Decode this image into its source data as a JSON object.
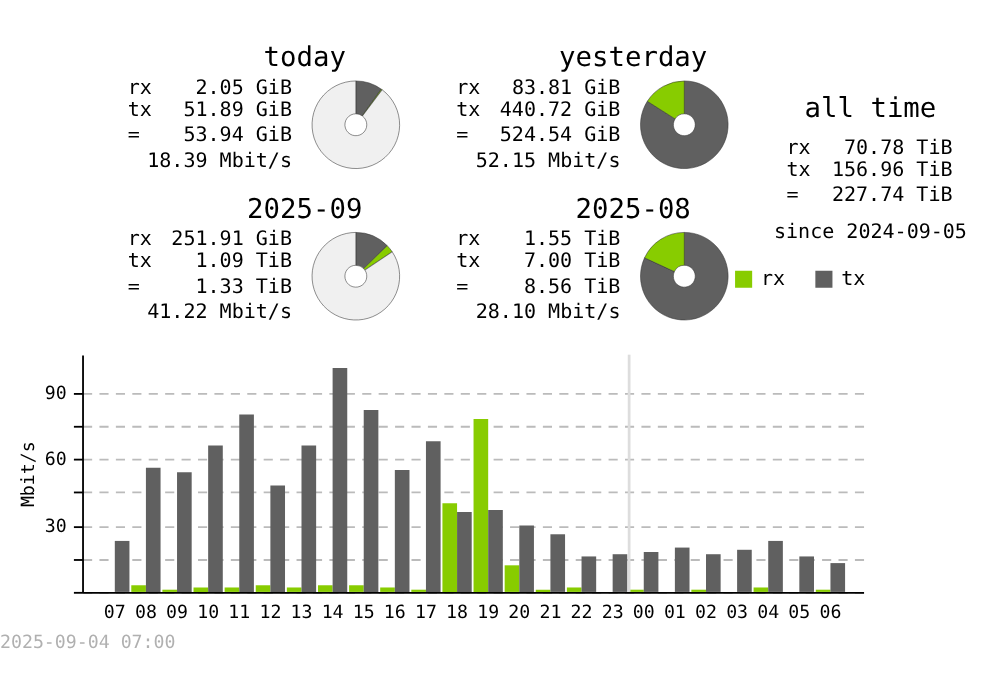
{
  "chart_data": [
    {
      "type": "donut",
      "title": "today",
      "categories": [
        null,
        null,
        null
      ],
      "values": [
        9.89,
        0.39,
        89.72
      ],
      "colors": [
        "#606060",
        "#88cc00",
        "#f0f0f0"
      ],
      "annotations": [
        "rx",
        "2.05 GiB",
        "tx",
        "51.89 GiB",
        "=",
        "53.94 GiB",
        "18.39 Mbit/s"
      ]
    },
    {
      "type": "donut",
      "title": "yesterday",
      "categories": [
        null,
        null
      ],
      "values": [
        84.0,
        16.0
      ],
      "colors": [
        "#606060",
        "#88cc00"
      ],
      "annotations": [
        "rx",
        "83.81 GiB",
        "tx",
        "440.72 GiB",
        "=",
        "524.54 GiB",
        "52.15 Mbit/s"
      ]
    },
    {
      "type": "other",
      "title": "all time",
      "annotations": [
        "rx",
        "70.78 TiB",
        "tx",
        "156.96 TiB",
        "=",
        "227.74 TiB",
        "since 2024-09-05"
      ]
    },
    {
      "type": "donut",
      "title": "2025-09",
      "categories": [
        null,
        null,
        null
      ],
      "values": [
        12.7,
        2.9,
        84.4
      ],
      "colors": [
        "#606060",
        "#88cc00",
        "#f0f0f0"
      ],
      "annotations": [
        "rx",
        "251.91 GiB",
        "tx",
        "1.09 TiB",
        "=",
        "1.33 TiB",
        "41.22 Mbit/s"
      ]
    },
    {
      "type": "donut",
      "title": "2025-08",
      "categories": [
        null,
        null
      ],
      "values": [
        81.9,
        18.1
      ],
      "colors": [
        "#606060",
        "#88cc00"
      ],
      "annotations": [
        "rx",
        "1.55 TiB",
        "tx",
        "7.00 TiB",
        "=",
        "8.56 TiB",
        "28.10 Mbit/s"
      ]
    },
    {
      "type": "bar",
      "ylabel": "Mbit/s",
      "categories": [
        "07",
        "08",
        "09",
        "10",
        "11",
        "12",
        "13",
        "14",
        "15",
        "16",
        "17",
        "18",
        "19",
        "20",
        "21",
        "22",
        "23",
        "00",
        "01",
        "02",
        "03",
        "04",
        "05",
        "06"
      ],
      "series": [
        {
          "name": "rx",
          "color": "#88cc00",
          "values": [
            0,
            3,
            1,
            2,
            2,
            3,
            2,
            3,
            3,
            2,
            1,
            40,
            78,
            12,
            1,
            2,
            0,
            1,
            0,
            1,
            0,
            2,
            0,
            1
          ]
        },
        {
          "name": "tx",
          "color": "#606060",
          "values": [
            23,
            56,
            54,
            66,
            80,
            48,
            66,
            101,
            82,
            55,
            68,
            36,
            37,
            30,
            26,
            16,
            17,
            18,
            20,
            17,
            19,
            23,
            16,
            13
          ]
        }
      ],
      "ylim": [
        0,
        107
      ],
      "yticks": [
        {
          "value": 0,
          "label": null
        },
        {
          "value": 15,
          "label": null
        },
        30,
        {
          "value": 45,
          "label": null
        },
        60,
        {
          "value": 75,
          "label": null
        },
        90
      ],
      "grid": "y",
      "legend": "top right",
      "ref_lines": [
        {
          "axis": "x",
          "value": "00",
          "color": "#dddddd"
        }
      ],
      "annotations": [
        "2025-09-04 07:00"
      ]
    }
  ]
}
